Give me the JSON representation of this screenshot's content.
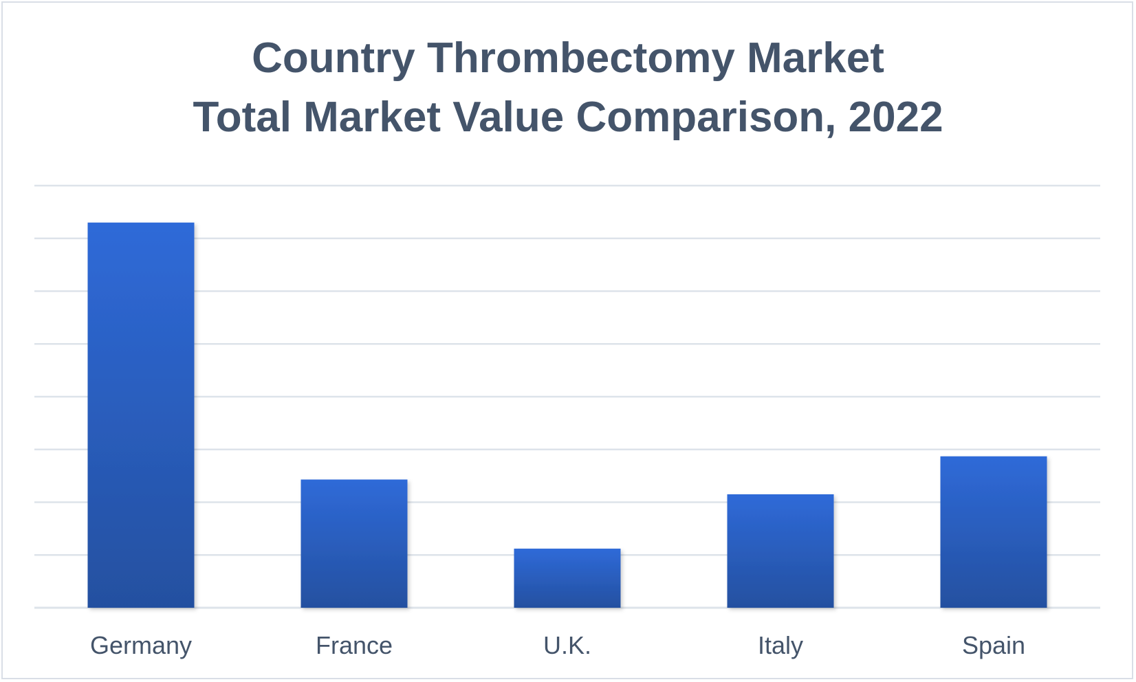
{
  "title_line1": "Country Thrombectomy Market",
  "title_line2": "Total Market Value Comparison, 2022",
  "colors": {
    "bar_top": "#2f6ad8",
    "bar_bottom": "#2450a0",
    "grid": "#dde3ea",
    "text": "#44546a",
    "border": "#d9dee6"
  },
  "chart_data": {
    "type": "bar",
    "title": "Country Thrombectomy Market Total Market Value Comparison, 2022",
    "categories": [
      "Germany",
      "France",
      "U.K.",
      "Italy",
      "Spain"
    ],
    "values": [
      7.3,
      2.43,
      1.12,
      2.15,
      2.87
    ],
    "ylim": [
      0,
      8
    ],
    "y_ticks_shown": false,
    "grid": true,
    "legend": "none",
    "xlabel": "",
    "ylabel": ""
  }
}
